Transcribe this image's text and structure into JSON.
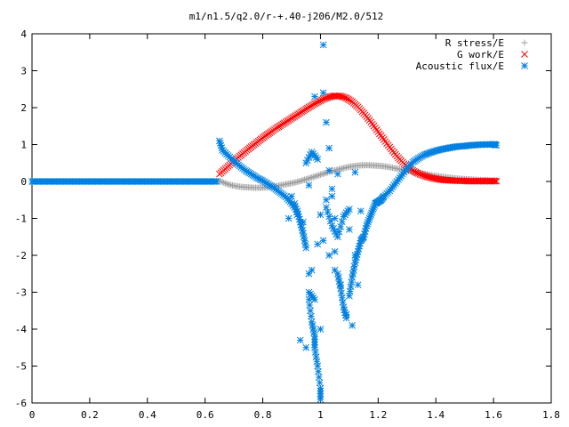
{
  "chart_data": {
    "type": "scatter",
    "title": "m1/n1.5/q2.0/r-+.40-j206/M2.0/512",
    "xlabel": "",
    "ylabel": "",
    "xlim": [
      0,
      1.8
    ],
    "ylim": [
      -6,
      4
    ],
    "x_ticks": [
      "0",
      "0.2",
      "0.4",
      "0.6",
      "0.8",
      "1",
      "1.2",
      "1.4",
      "1.6",
      "1.8"
    ],
    "y_ticks": [
      "4",
      "3",
      "2",
      "1",
      "0",
      "-1",
      "-2",
      "-3",
      "-4",
      "-5",
      "-6"
    ],
    "grid": false,
    "legend_position": "top-right",
    "series": [
      {
        "name": "R stress/E",
        "marker": "plus",
        "color": "#a0a0a0",
        "x": [
          0.65,
          0.67,
          0.69,
          0.71,
          0.73,
          0.75,
          0.77,
          0.79,
          0.81,
          0.83,
          0.85,
          0.87,
          0.89,
          0.91,
          0.93,
          0.95,
          0.97,
          0.99,
          1.01,
          1.03,
          1.05,
          1.07,
          1.09,
          1.11,
          1.13,
          1.15,
          1.17,
          1.19,
          1.21,
          1.23,
          1.25,
          1.27,
          1.29,
          1.31,
          1.33,
          1.35,
          1.37,
          1.39,
          1.41,
          1.43,
          1.45,
          1.47,
          1.49,
          1.51,
          1.53,
          1.55,
          1.57,
          1.59,
          1.61
        ],
        "y": [
          0.02,
          -0.05,
          -0.1,
          -0.13,
          -0.15,
          -0.16,
          -0.17,
          -0.17,
          -0.16,
          -0.14,
          -0.12,
          -0.09,
          -0.06,
          -0.03,
          0.01,
          0.06,
          0.11,
          0.16,
          0.21,
          0.26,
          0.3,
          0.34,
          0.38,
          0.41,
          0.43,
          0.44,
          0.44,
          0.43,
          0.42,
          0.4,
          0.37,
          0.34,
          0.31,
          0.28,
          0.25,
          0.22,
          0.19,
          0.16,
          0.14,
          0.12,
          0.1,
          0.08,
          0.07,
          0.06,
          0.05,
          0.04,
          0.04,
          0.03,
          0.03
        ]
      },
      {
        "name": "G work/E",
        "marker": "x",
        "color": "#ff0000",
        "x": [
          0.65,
          0.67,
          0.69,
          0.71,
          0.73,
          0.75,
          0.77,
          0.79,
          0.81,
          0.83,
          0.85,
          0.87,
          0.89,
          0.91,
          0.93,
          0.95,
          0.97,
          0.99,
          1.01,
          1.03,
          1.05,
          1.07,
          1.09,
          1.11,
          1.13,
          1.15,
          1.17,
          1.19,
          1.21,
          1.23,
          1.25,
          1.27,
          1.29,
          1.31,
          1.33,
          1.35,
          1.37,
          1.39,
          1.41,
          1.43,
          1.45,
          1.47,
          1.49,
          1.51,
          1.53,
          1.55,
          1.57,
          1.59,
          1.61
        ],
        "y": [
          0.2,
          0.34,
          0.48,
          0.62,
          0.75,
          0.88,
          1.0,
          1.12,
          1.24,
          1.35,
          1.46,
          1.56,
          1.66,
          1.76,
          1.86,
          1.96,
          2.06,
          2.15,
          2.23,
          2.29,
          2.32,
          2.31,
          2.26,
          2.16,
          2.02,
          1.85,
          1.66,
          1.45,
          1.24,
          1.03,
          0.83,
          0.64,
          0.48,
          0.35,
          0.25,
          0.18,
          0.13,
          0.09,
          0.06,
          0.04,
          0.03,
          0.02,
          0.02,
          0.01,
          0.01,
          0.01,
          0.01,
          0.01,
          0.01
        ]
      },
      {
        "name": "Acoustic flux/E",
        "marker": "star",
        "color": "#0080e0",
        "x": [
          0.0,
          0.02,
          0.04,
          0.06,
          0.08,
          0.1,
          0.12,
          0.14,
          0.16,
          0.18,
          0.2,
          0.22,
          0.24,
          0.26,
          0.28,
          0.3,
          0.32,
          0.34,
          0.36,
          0.38,
          0.4,
          0.42,
          0.44,
          0.46,
          0.48,
          0.5,
          0.52,
          0.54,
          0.56,
          0.58,
          0.6,
          0.62,
          0.64,
          0.65,
          0.66,
          0.68,
          0.7,
          0.72,
          0.74,
          0.76,
          0.78,
          0.8,
          0.82,
          0.84,
          0.86,
          0.88,
          0.9,
          0.92,
          0.93,
          0.94,
          0.95,
          0.96,
          0.96,
          0.97,
          0.98,
          0.98,
          0.99,
          1.0,
          1.0,
          1.01,
          1.01,
          1.02,
          1.03,
          1.03,
          1.04,
          1.05,
          1.05,
          1.06,
          1.07,
          1.08,
          1.09,
          1.1,
          1.11,
          1.12,
          1.13,
          1.14,
          1.15,
          1.16,
          1.17,
          1.18,
          1.19,
          1.2,
          1.21,
          1.22,
          1.24,
          1.26,
          1.28,
          1.3,
          1.32,
          1.34,
          1.36,
          1.38,
          1.4,
          1.42,
          1.44,
          1.46,
          1.48,
          1.5,
          1.52,
          1.54,
          1.56,
          1.58,
          1.6,
          1.61,
          0.91,
          0.92,
          0.89,
          0.9,
          0.95,
          0.97,
          0.99,
          1.02,
          1.04,
          1.06,
          1.08,
          1.1,
          1.12,
          1.14,
          1.04,
          1.0,
          0.98,
          0.94,
          0.96,
          1.02,
          1.06,
          1.1,
          1.12,
          1.0,
          0.95,
          0.99,
          1.03,
          1.07,
          1.11,
          0.93,
          0.97,
          1.01,
          1.05,
          1.09,
          1.13,
          0.96,
          0.98
        ],
        "y": [
          0,
          0,
          0,
          0,
          0,
          0,
          0,
          0,
          0,
          0,
          0,
          0,
          0,
          0,
          0,
          0,
          0,
          0,
          0,
          0,
          0,
          0,
          0,
          0,
          0,
          0,
          0,
          0,
          0,
          0,
          0,
          0,
          0,
          1.1,
          0.85,
          0.7,
          0.55,
          0.42,
          0.3,
          0.2,
          0.1,
          0.02,
          -0.08,
          -0.18,
          -0.3,
          -0.42,
          -0.6,
          -0.8,
          -1.1,
          -1.4,
          -1.8,
          -2.5,
          -3.2,
          -3.8,
          -4.2,
          -4.5,
          -5.0,
          -5.6,
          -5.9,
          3.7,
          2.4,
          1.6,
          0.9,
          0.3,
          -0.4,
          -1.0,
          -1.9,
          -2.5,
          -2.9,
          -3.4,
          -3.7,
          -3.1,
          -2.6,
          -2.2,
          -1.9,
          -1.6,
          -1.5,
          -1.2,
          -1.0,
          -0.8,
          -0.6,
          -0.55,
          -0.5,
          -0.4,
          -0.25,
          -0.05,
          0.15,
          0.35,
          0.52,
          0.63,
          0.72,
          0.78,
          0.83,
          0.87,
          0.9,
          0.93,
          0.95,
          0.96,
          0.98,
          0.99,
          1.0,
          1.0,
          1.01,
          0.98,
          -0.6,
          -0.9,
          -1.0,
          -0.4,
          0.5,
          0.8,
          0.6,
          -0.7,
          -1.2,
          -1.5,
          -0.95,
          -0.75,
          0.25,
          -0.8,
          -0.2,
          -0.9,
          2.3,
          -1.1,
          -0.1,
          -0.5,
          0.2,
          -1.3,
          -2.0,
          -4.0,
          -4.5,
          -1.7,
          -2.0,
          -2.8,
          -3.9,
          -4.3,
          -2.4,
          -1.6,
          -2.4,
          -3.6,
          -2.8,
          -3.0,
          -3.2
        ]
      }
    ]
  }
}
